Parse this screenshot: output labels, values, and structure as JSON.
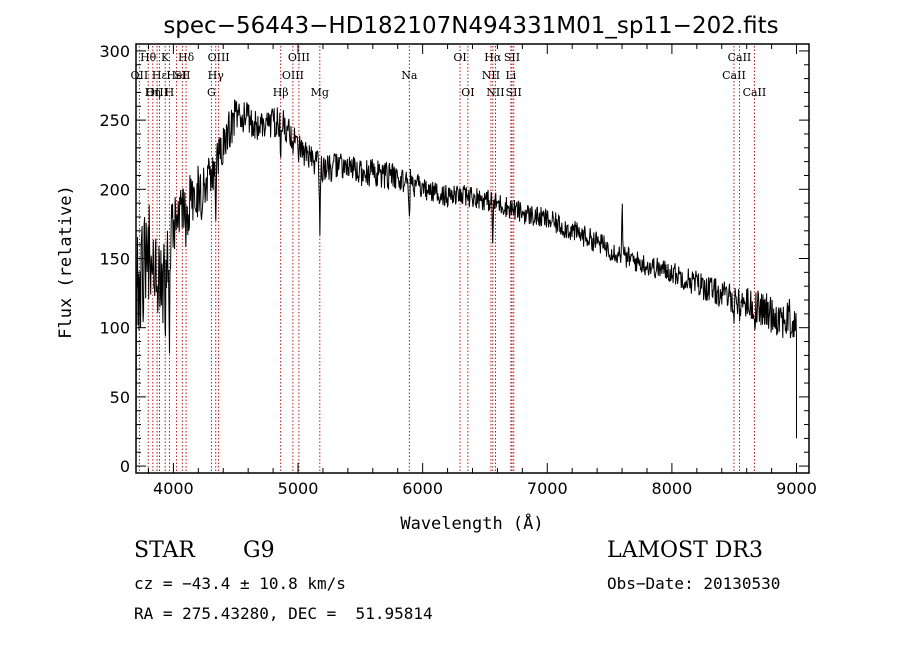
{
  "chart_data": {
    "type": "line",
    "title": "spec−56443−HD182107N494331M01_sp11−202.fits",
    "xlabel": "Wavelength (Å)",
    "ylabel": "Flux (relative)",
    "xlim": [
      3700,
      9100
    ],
    "ylim": [
      -5,
      305
    ],
    "xticks": [
      4000,
      5000,
      6000,
      7000,
      8000,
      9000
    ],
    "yticks": [
      0,
      50,
      100,
      150,
      200,
      250,
      300
    ],
    "xticks_minor": [
      3800,
      4200,
      4400,
      4600,
      4800,
      5200,
      5400,
      5600,
      5800,
      6200,
      6400,
      6600,
      6800,
      7200,
      7400,
      7600,
      7800,
      8200,
      8400,
      8600,
      8800
    ],
    "yticks_minor": [
      10,
      20,
      30,
      40,
      60,
      70,
      80,
      90,
      110,
      120,
      130,
      140,
      160,
      170,
      180,
      190,
      210,
      220,
      230,
      240,
      260,
      270,
      280,
      290
    ],
    "grid": false,
    "spectrum_envelope": {
      "x": [
        3700,
        3750,
        3800,
        3850,
        3900,
        3950,
        4000,
        4100,
        4200,
        4300,
        4400,
        4500,
        4600,
        4700,
        4800,
        4900,
        5000,
        5100,
        5200,
        5300,
        5400,
        5500,
        5600,
        5700,
        5800,
        5900,
        6000,
        6200,
        6400,
        6600,
        6800,
        7000,
        7200,
        7400,
        7600,
        7800,
        8000,
        8200,
        8400,
        8600,
        8800,
        8950,
        9000
      ],
      "y": [
        130,
        140,
        150,
        145,
        130,
        140,
        170,
        185,
        200,
        210,
        230,
        255,
        250,
        245,
        250,
        245,
        230,
        220,
        215,
        218,
        215,
        212,
        212,
        210,
        208,
        205,
        200,
        195,
        195,
        190,
        183,
        178,
        170,
        162,
        152,
        145,
        140,
        132,
        124,
        118,
        110,
        105,
        100
      ],
      "scatter": [
        45,
        45,
        45,
        40,
        30,
        30,
        28,
        22,
        20,
        15,
        15,
        15,
        12,
        12,
        12,
        12,
        10,
        12,
        10,
        10,
        10,
        10,
        10,
        10,
        10,
        10,
        8,
        8,
        8,
        8,
        8,
        8,
        8,
        8,
        8,
        8,
        8,
        10,
        10,
        12,
        14,
        16,
        18
      ]
    },
    "lines": [
      {
        "name": "Hθ",
        "wavelength": 3798,
        "row": 0
      },
      {
        "name": "K",
        "wavelength": 3934,
        "row": 0
      },
      {
        "name": "Hδ",
        "wavelength": 4102,
        "row": 0
      },
      {
        "name": "OIII",
        "wavelength": 4363,
        "row": 0
      },
      {
        "name": "OIII",
        "wavelength": 5007,
        "row": 0
      },
      {
        "name": "OI",
        "wavelength": 6300,
        "row": 0
      },
      {
        "name": "Hα",
        "wavelength": 6563,
        "row": 0
      },
      {
        "name": "SII",
        "wavelength": 6717,
        "row": 0
      },
      {
        "name": "CaII",
        "wavelength": 8542,
        "row": 0
      },
      {
        "name": "OII",
        "wavelength": 3727,
        "row": 1
      },
      {
        "name": "Hε",
        "wavelength": 3889,
        "row": 1
      },
      {
        "name": "HeI",
        "wavelength": 4026,
        "row": 1
      },
      {
        "name": "SII",
        "wavelength": 4072,
        "row": 1
      },
      {
        "name": "Hγ",
        "wavelength": 4340,
        "row": 1
      },
      {
        "name": "OIII",
        "wavelength": 4959,
        "row": 1
      },
      {
        "name": "Na",
        "wavelength": 5893,
        "row": 1
      },
      {
        "name": "NII",
        "wavelength": 6548,
        "row": 1
      },
      {
        "name": "Li",
        "wavelength": 6708,
        "row": 1
      },
      {
        "name": "CaII",
        "wavelength": 8498,
        "row": 1
      },
      {
        "name": "OIII",
        "wavelength": 3869,
        "row": 2
      },
      {
        "name": "Hη",
        "wavelength": 3835,
        "row": 2
      },
      {
        "name": "H",
        "wavelength": 3968,
        "row": 2
      },
      {
        "name": "G",
        "wavelength": 4305,
        "row": 2
      },
      {
        "name": "Hβ",
        "wavelength": 4861,
        "row": 2
      },
      {
        "name": "Mg",
        "wavelength": 5175,
        "row": 2
      },
      {
        "name": "OI",
        "wavelength": 6363,
        "row": 2
      },
      {
        "name": "NII",
        "wavelength": 6584,
        "row": 2
      },
      {
        "name": "SII",
        "wavelength": 6731,
        "row": 2
      },
      {
        "name": "CaII",
        "wavelength": 8662,
        "row": 2
      }
    ]
  },
  "info": {
    "class": "STAR",
    "subclass": "G9",
    "survey": "LAMOST DR3",
    "cz": "cz = −43.4 ± 10.8 km/s",
    "obs_date": "Obs−Date: 20130530",
    "coords": "RA = 275.43280, DEC =  51.95814"
  }
}
